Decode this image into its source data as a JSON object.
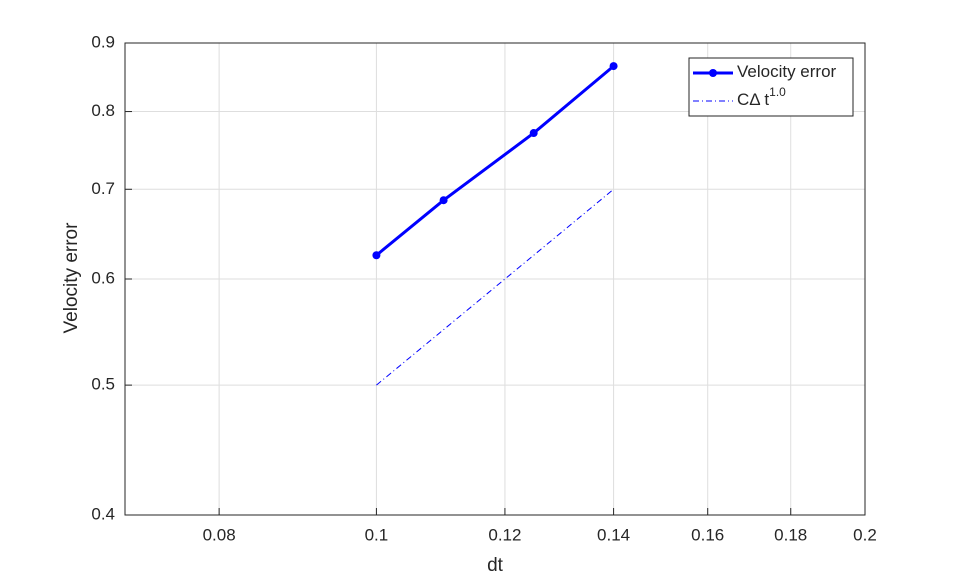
{
  "chart_data": {
    "type": "line",
    "xlabel": "dt",
    "ylabel": "Velocity error",
    "x_scale": "log",
    "y_scale": "log",
    "grid": true,
    "legend_position": "top-right",
    "xlim": [
      0.07,
      0.2
    ],
    "xticks": [
      0.08,
      0.1,
      0.12,
      0.14,
      0.16,
      0.18,
      0.2
    ],
    "ylim": [
      0.4,
      0.9
    ],
    "yticks": [
      0.4,
      0.5,
      0.6,
      0.7,
      0.8,
      0.9
    ],
    "series": [
      {
        "name": "Velocity error",
        "color": "#0000ff",
        "linestyle": "solid",
        "line_width": 3,
        "marker": "o",
        "x": [
          0.1,
          0.11,
          0.125,
          0.14
        ],
        "values": [
          0.625,
          0.687,
          0.771,
          0.865
        ]
      },
      {
        "name": "CΔ t",
        "name_superscript": "1.0",
        "color": "#0000ff",
        "linestyle": "dashdot",
        "line_width": 1,
        "x": [
          0.1,
          0.14
        ],
        "values": [
          0.5,
          0.7
        ]
      }
    ]
  }
}
